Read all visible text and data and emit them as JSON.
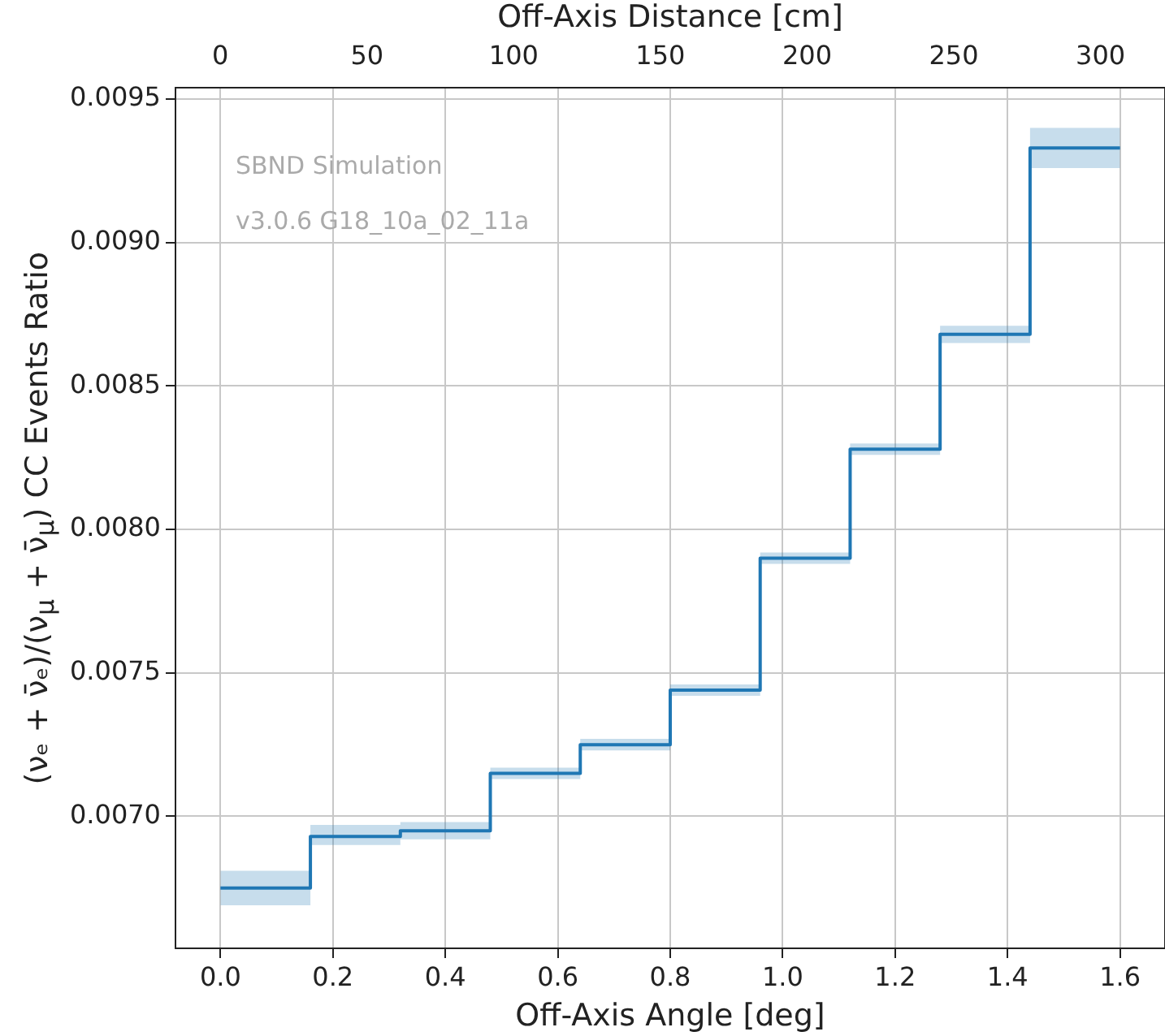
{
  "chart_data": {
    "type": "step",
    "xlabel": "Off-Axis Angle [deg]",
    "ylabel": "(νₑ + ν̄ₑ)/(ν$_{μ}$ + ν̄$_{μ}$) CC Events Ratio",
    "x2label": "Off-Axis Distance [cm]",
    "annotations": [
      "SBND Simulation",
      "v3.0.6 G18_10a_02_11a"
    ],
    "series": [
      {
        "color": "#1f77b4",
        "x": [
          0,
          0.16,
          0.32,
          0.48,
          0.64,
          0.8,
          0.96,
          1.12,
          1.28,
          1.44,
          1.6
        ],
        "values": [
          0.00675,
          0.00693,
          0.00695,
          0.00715,
          0.00725,
          0.00744,
          0.0079,
          0.00828,
          0.00868,
          0.00933,
          0.00933
        ],
        "lower": [
          0.00669,
          0.0069,
          0.00692,
          0.00713,
          0.00723,
          0.00742,
          0.00788,
          0.00826,
          0.00865,
          0.00926,
          0.00926
        ],
        "upper": [
          0.00681,
          0.00697,
          0.00698,
          0.00717,
          0.00727,
          0.00746,
          0.00792,
          0.0083,
          0.00871,
          0.0094,
          0.0094
        ]
      }
    ],
    "xlim": [
      -0.08,
      1.68
    ],
    "xticks": [
      {
        "value": 0,
        "label": "0.0"
      },
      {
        "value": 0.2,
        "label": "0.2"
      },
      {
        "value": 0.4,
        "label": "0.4"
      },
      {
        "value": 0.6,
        "label": "0.6"
      },
      {
        "value": 0.8,
        "label": "0.8"
      },
      {
        "value": 1,
        "label": "1.0"
      },
      {
        "value": 1.2,
        "label": "1.2"
      },
      {
        "value": 1.4,
        "label": "1.4"
      },
      {
        "value": 1.6,
        "label": "1.6"
      }
    ],
    "x2lim": [
      -15.3,
      322
    ],
    "x2ticks": [
      0,
      50,
      100,
      150,
      200,
      250,
      300
    ],
    "ylim": [
      0.00654,
      0.00954
    ],
    "yticks": [
      {
        "value": 0.007,
        "label": "0.0070"
      },
      {
        "value": 0.0075,
        "label": "0.0075"
      },
      {
        "value": 0.008,
        "label": "0.0080"
      },
      {
        "value": 0.0085,
        "label": "0.0085"
      },
      {
        "value": 0.009,
        "label": "0.0090"
      },
      {
        "value": 0.0095,
        "label": "0.0095"
      }
    ],
    "grid": true,
    "legend": false,
    "line_style": "solid",
    "marker": "none"
  }
}
